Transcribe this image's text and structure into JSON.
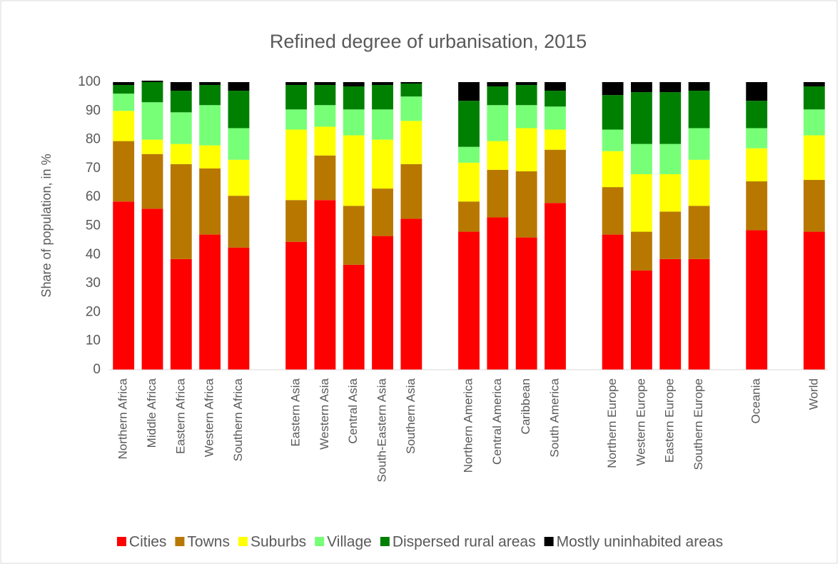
{
  "chart_data": {
    "type": "stacked_bar",
    "title": "Refined degree of urbanisation, 2015",
    "y_label": "Share of population, in %",
    "categories": [
      "Northern Africa",
      "Middle Africa",
      "Eastern Africa",
      "Western Africa",
      "Southern Africa",
      null,
      "Eastern Asia",
      "Western Asia",
      "Central Asia",
      "South-Eastern Asia",
      "Southern Asia",
      null,
      "Northern America",
      "Central America",
      "Caribbean",
      "South America",
      null,
      "Northern Europe",
      "Western Europe",
      "Eastern Europe",
      "Southern Europe",
      null,
      "Oceania",
      null,
      "World"
    ],
    "series": [
      {
        "name": "Cities",
        "color": "#ff0000",
        "values": [
          58.5,
          56,
          38.5,
          47,
          42.5,
          null,
          44.5,
          59,
          36.5,
          46.5,
          52.5,
          null,
          48,
          53,
          46,
          58,
          null,
          47,
          34.5,
          38.5,
          38.5,
          null,
          48.5,
          null,
          48
        ]
      },
      {
        "name": "Towns",
        "color": "#b87800",
        "values": [
          21,
          19,
          33,
          23,
          18,
          null,
          14.5,
          15.5,
          20.5,
          16.5,
          19,
          null,
          10.5,
          16.5,
          23,
          18.5,
          null,
          16.5,
          13.5,
          16.5,
          18.5,
          null,
          17,
          null,
          18
        ]
      },
      {
        "name": "Suburbs",
        "color": "#ffff00",
        "values": [
          10.5,
          5,
          7,
          8,
          12.5,
          null,
          24.5,
          10,
          24.5,
          17,
          15,
          null,
          13.5,
          10,
          15,
          7,
          null,
          12.5,
          20,
          13,
          16,
          null,
          11.5,
          null,
          15.5
        ]
      },
      {
        "name": "Village",
        "color": "#77ff77",
        "values": [
          6,
          13,
          11,
          14,
          11,
          null,
          7,
          7.5,
          9,
          10.5,
          8.5,
          null,
          5.5,
          12.5,
          8,
          8,
          null,
          7.5,
          10.5,
          10.5,
          11,
          null,
          7,
          null,
          9
        ]
      },
      {
        "name": "Dispersed rural areas",
        "color": "#008000",
        "values": [
          3,
          7,
          7.5,
          7,
          13,
          null,
          8.5,
          7,
          8,
          8.5,
          4.5,
          null,
          16,
          6.5,
          7,
          5.5,
          null,
          12,
          18,
          18,
          13,
          null,
          9.5,
          null,
          8
        ]
      },
      {
        "name": "Mostly uninhabited areas",
        "color": "#000000",
        "values": [
          1,
          0.5,
          3,
          1,
          3,
          null,
          1,
          1,
          1.5,
          1,
          0.5,
          null,
          6.5,
          1.5,
          1,
          3,
          null,
          4.5,
          3.5,
          3.5,
          3,
          null,
          6.5,
          null,
          1.5
        ]
      }
    ],
    "ylim": [
      0,
      100
    ],
    "yticks": [
      0,
      10,
      20,
      30,
      40,
      50,
      60,
      70,
      80,
      90,
      100
    ],
    "grid": false,
    "legend": "bottom"
  }
}
